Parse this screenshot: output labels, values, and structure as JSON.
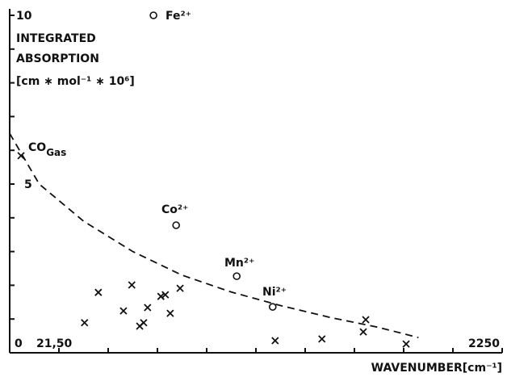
{
  "chart_data": {
    "type": "scatter",
    "y_label": [
      "INTEGRATED",
      "ABSORPTION",
      "[cm ∗ mol⁻¹ ∗ 10⁶]"
    ],
    "x_label": "WAVENUMBER[cm⁻¹]",
    "xlim": [
      2150,
      2250
    ],
    "ylim": [
      0,
      10
    ],
    "xticks": [
      {
        "value": 2150,
        "label": "21,50"
      },
      2250
    ],
    "xminor": [
      2160,
      2170,
      2180,
      2190,
      2200,
      2210,
      2220,
      2230,
      2240
    ],
    "yticks": [
      0,
      5,
      10
    ],
    "yminor": [
      1,
      2,
      3,
      4,
      6,
      7,
      8,
      9
    ],
    "series": [
      {
        "marker": "o",
        "color": "#111",
        "x": [
          2179.2,
          2183.8,
          2196.1,
          2203.4
        ],
        "values": [
          10.0,
          3.78,
          2.27,
          1.36
        ]
      },
      {
        "marker": "x",
        "color": "#111",
        "x": [
          2152.3,
          2165.2,
          2168.0,
          2173.1,
          2174.8,
          2176.4,
          2177.2,
          2178.0,
          2180.7,
          2181.6,
          2182.6,
          2184.6,
          2203.9,
          2213.4,
          2221.8,
          2222.3,
          2230.5
        ],
        "values": [
          5.84,
          0.89,
          1.79,
          1.24,
          2.01,
          0.79,
          0.89,
          1.34,
          1.67,
          1.72,
          1.17,
          1.91,
          0.36,
          0.41,
          0.62,
          0.98,
          0.26
        ]
      },
      {
        "marker": "dashed-line",
        "color": "#111",
        "x": [
          2150,
          2156,
          2165,
          2175,
          2185,
          2195,
          2205,
          2215,
          2225,
          2233
        ],
        "values": [
          6.5,
          5.0,
          3.9,
          3.0,
          2.3,
          1.8,
          1.4,
          1.05,
          0.75,
          0.45
        ]
      }
    ],
    "annotations": [
      {
        "text": "Fe²⁺"
      },
      {
        "text": "Co²⁺"
      },
      {
        "text": "Mn²⁺"
      },
      {
        "text": "Ni²⁺"
      },
      {
        "text": "CO",
        "sub": "Gas"
      }
    ]
  }
}
